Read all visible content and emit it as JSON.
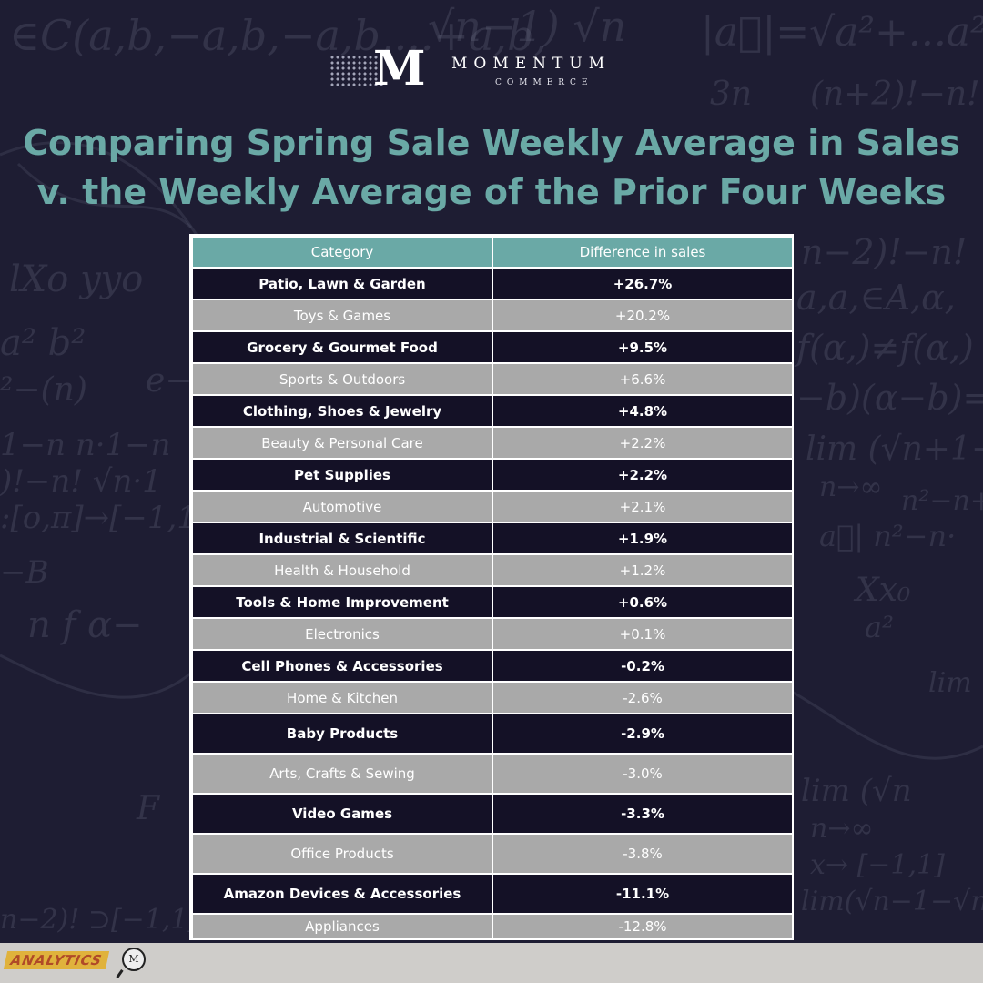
{
  "logo": {
    "mark": "M",
    "name": "MOMENTUM",
    "sub": "COMMERCE"
  },
  "footer_badge": "ANALYTICS",
  "magnifier_mark": "M",
  "colors": {
    "background": "#1e1d33",
    "accent": "#6aa9a6",
    "row_dark": "#141126",
    "row_light": "#a9a9a9"
  },
  "chart_data": {
    "type": "table",
    "title": "Comparing Spring Sale Weekly Average in Sales v. the Weekly Average of the Prior Four Weeks",
    "columns": [
      "Category",
      "Difference in sales"
    ],
    "rows": [
      [
        "Patio, Lawn & Garden",
        "+26.7%"
      ],
      [
        "Toys & Games",
        "+20.2%"
      ],
      [
        "Grocery & Gourmet Food",
        "+9.5%"
      ],
      [
        "Sports & Outdoors",
        "+6.6%"
      ],
      [
        "Clothing, Shoes & Jewelry",
        "+4.8%"
      ],
      [
        "Beauty & Personal Care",
        "+2.2%"
      ],
      [
        "Pet Supplies",
        "+2.2%"
      ],
      [
        "Automotive",
        "+2.1%"
      ],
      [
        "Industrial & Scientific",
        "+1.9%"
      ],
      [
        "Health & Household",
        "+1.2%"
      ],
      [
        "Tools & Home Improvement",
        "+0.6%"
      ],
      [
        "Electronics",
        "+0.1%"
      ],
      [
        "Cell Phones & Accessories",
        "-0.2%"
      ],
      [
        "Home & Kitchen",
        "-2.6%"
      ],
      [
        "Baby Products",
        "-2.9%"
      ],
      [
        "Arts, Crafts & Sewing",
        "-3.0%"
      ],
      [
        "Video Games",
        "-3.3%"
      ],
      [
        "Office Products",
        "-3.8%"
      ],
      [
        "Amazon Devices & Accessories",
        "-11.1%"
      ],
      [
        "Appliances",
        "-12.8%"
      ]
    ]
  }
}
